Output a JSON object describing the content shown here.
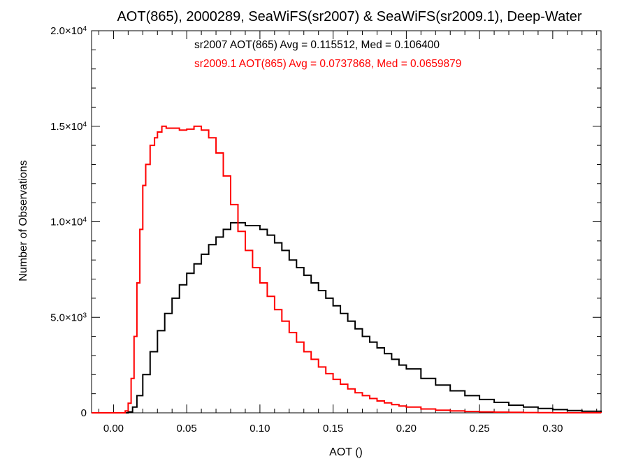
{
  "chart_data": {
    "type": "line",
    "title": "AOT(865), 2000289, SeaWiFS(sr2007) & SeaWiFS(sr2009.1), Deep-Water",
    "xlabel": "AOT ()",
    "ylabel": "Number of Observations",
    "xlim": [
      -0.015,
      0.333
    ],
    "ylim": [
      0,
      20000
    ],
    "x_ticks": [
      0.0,
      0.05,
      0.1,
      0.15,
      0.2,
      0.25,
      0.3
    ],
    "x_tick_labels": [
      "0.00",
      "0.05",
      "0.10",
      "0.15",
      "0.20",
      "0.25",
      "0.30"
    ],
    "y_ticks": [
      0,
      5000,
      10000,
      15000,
      20000
    ],
    "y_tick_labels": [
      {
        "mantissa": "0",
        "exp": ""
      },
      {
        "mantissa": "5.0×10",
        "exp": "3"
      },
      {
        "mantissa": "1.0×10",
        "exp": "4"
      },
      {
        "mantissa": "1.5×10",
        "exp": "4"
      },
      {
        "mantissa": "2.0×10",
        "exp": "4"
      }
    ],
    "grid": false,
    "annotations": [
      "sr2007 AOT(865) Avg = 0.115512, Med = 0.106400",
      "sr2009.1 AOT(865) Avg = 0.0737868, Med = 0.0659879"
    ],
    "colors": {
      "sr2007": "#000000",
      "sr2009.1": "#ff0000"
    },
    "series": [
      {
        "key": "sr2007",
        "color": "#000000",
        "x": [
          -0.015,
          0.005,
          0.01,
          0.013,
          0.016,
          0.02,
          0.025,
          0.03,
          0.035,
          0.04,
          0.045,
          0.05,
          0.055,
          0.06,
          0.065,
          0.07,
          0.075,
          0.08,
          0.085,
          0.09,
          0.095,
          0.1,
          0.105,
          0.11,
          0.115,
          0.12,
          0.125,
          0.13,
          0.135,
          0.14,
          0.145,
          0.15,
          0.155,
          0.16,
          0.165,
          0.17,
          0.175,
          0.18,
          0.185,
          0.19,
          0.195,
          0.2,
          0.21,
          0.22,
          0.23,
          0.24,
          0.25,
          0.26,
          0.27,
          0.28,
          0.29,
          0.3,
          0.31,
          0.32,
          0.333
        ],
        "y": [
          0,
          0,
          50,
          300,
          900,
          2000,
          3200,
          4300,
          5200,
          6000,
          6700,
          7300,
          7800,
          8300,
          8800,
          9200,
          9600,
          9950,
          9950,
          9800,
          9800,
          9600,
          9300,
          8900,
          8500,
          8000,
          7600,
          7200,
          6800,
          6400,
          6000,
          5600,
          5200,
          4800,
          4400,
          4000,
          3700,
          3400,
          3100,
          2800,
          2500,
          2300,
          1800,
          1450,
          1150,
          900,
          700,
          550,
          400,
          300,
          230,
          170,
          120,
          80,
          30
        ]
      },
      {
        "key": "sr2009.1",
        "color": "#ff0000",
        "x": [
          -0.015,
          0.005,
          0.008,
          0.01,
          0.012,
          0.014,
          0.016,
          0.018,
          0.02,
          0.022,
          0.025,
          0.028,
          0.03,
          0.033,
          0.036,
          0.04,
          0.045,
          0.05,
          0.055,
          0.06,
          0.065,
          0.07,
          0.075,
          0.08,
          0.085,
          0.09,
          0.095,
          0.1,
          0.105,
          0.11,
          0.115,
          0.12,
          0.125,
          0.13,
          0.135,
          0.14,
          0.145,
          0.15,
          0.155,
          0.16,
          0.165,
          0.17,
          0.175,
          0.18,
          0.185,
          0.19,
          0.195,
          0.2,
          0.21,
          0.22,
          0.23,
          0.24,
          0.25,
          0.26,
          0.27,
          0.28,
          0.29,
          0.3,
          0.333
        ],
        "y": [
          0,
          0,
          100,
          500,
          1800,
          4000,
          6800,
          9600,
          11900,
          13000,
          14000,
          14400,
          14700,
          15000,
          14900,
          14900,
          14800,
          14850,
          15000,
          14800,
          14400,
          13600,
          12400,
          10900,
          9500,
          8500,
          7600,
          6800,
          6100,
          5400,
          4800,
          4200,
          3700,
          3200,
          2800,
          2400,
          2050,
          1750,
          1500,
          1250,
          1050,
          900,
          750,
          620,
          520,
          430,
          360,
          300,
          200,
          140,
          100,
          70,
          50,
          35,
          25,
          15,
          10,
          5,
          0
        ]
      }
    ]
  }
}
